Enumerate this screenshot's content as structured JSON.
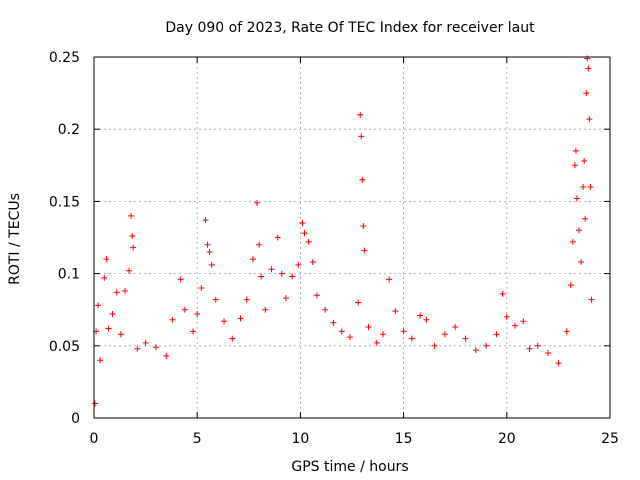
{
  "chart_data": {
    "type": "scatter",
    "title": "Day 090 of 2023, Rate Of TEC Index for receiver laut",
    "xlabel": "GPS time / hours",
    "ylabel": "ROTI / TECUs",
    "xlim": [
      0,
      25
    ],
    "ylim": [
      0,
      0.25
    ],
    "xticks": [
      0,
      5,
      10,
      15,
      20,
      25
    ],
    "xtick_labels": [
      "0",
      "5",
      "10",
      "15",
      "20",
      "25"
    ],
    "yticks": [
      0,
      0.05,
      0.1,
      0.15,
      0.2,
      0.25
    ],
    "ytick_labels": [
      "0",
      "0.05",
      "0.1",
      "0.15",
      "0.2",
      "0.25"
    ],
    "grid": true,
    "marker": "plus",
    "color": "#ff0000",
    "series": [
      {
        "points": [
          [
            0.05,
            0.01
          ],
          [
            0.1,
            0.06
          ],
          [
            0.2,
            0.078
          ],
          [
            0.3,
            0.04
          ],
          [
            0.5,
            0.097
          ],
          [
            0.6,
            0.11
          ],
          [
            0.7,
            0.062
          ],
          [
            0.9,
            0.072
          ],
          [
            1.1,
            0.087
          ],
          [
            1.3,
            0.058
          ],
          [
            1.5,
            0.088
          ],
          [
            1.7,
            0.102
          ],
          [
            1.8,
            0.14
          ],
          [
            1.85,
            0.126
          ],
          [
            1.9,
            0.118
          ],
          [
            2.1,
            0.048
          ],
          [
            2.5,
            0.052
          ],
          [
            3.0,
            0.049
          ],
          [
            3.5,
            0.043
          ],
          [
            3.8,
            0.068
          ],
          [
            4.2,
            0.096
          ],
          [
            4.4,
            0.075
          ],
          [
            4.8,
            0.06
          ],
          [
            5.0,
            0.072
          ],
          [
            5.2,
            0.09
          ],
          [
            5.4,
            0.137
          ],
          [
            5.5,
            0.12
          ],
          [
            5.6,
            0.115
          ],
          [
            5.7,
            0.106
          ],
          [
            5.9,
            0.082
          ],
          [
            6.3,
            0.067
          ],
          [
            6.7,
            0.055
          ],
          [
            7.1,
            0.069
          ],
          [
            7.4,
            0.082
          ],
          [
            7.7,
            0.11
          ],
          [
            7.9,
            0.149
          ],
          [
            8.0,
            0.12
          ],
          [
            8.1,
            0.098
          ],
          [
            8.3,
            0.075
          ],
          [
            8.6,
            0.103
          ],
          [
            8.9,
            0.125
          ],
          [
            9.1,
            0.1
          ],
          [
            9.3,
            0.083
          ],
          [
            9.6,
            0.098
          ],
          [
            9.9,
            0.106
          ],
          [
            10.1,
            0.135
          ],
          [
            10.2,
            0.128
          ],
          [
            10.4,
            0.122
          ],
          [
            10.6,
            0.108
          ],
          [
            10.8,
            0.085
          ],
          [
            11.2,
            0.075
          ],
          [
            11.6,
            0.066
          ],
          [
            12.0,
            0.06
          ],
          [
            12.4,
            0.056
          ],
          [
            12.8,
            0.08
          ],
          [
            12.9,
            0.21
          ],
          [
            12.95,
            0.195
          ],
          [
            13.0,
            0.165
          ],
          [
            13.05,
            0.133
          ],
          [
            13.1,
            0.116
          ],
          [
            13.3,
            0.063
          ],
          [
            13.7,
            0.052
          ],
          [
            14.0,
            0.058
          ],
          [
            14.3,
            0.096
          ],
          [
            14.6,
            0.074
          ],
          [
            15.0,
            0.06
          ],
          [
            15.4,
            0.055
          ],
          [
            15.8,
            0.071
          ],
          [
            16.1,
            0.068
          ],
          [
            16.5,
            0.05
          ],
          [
            17.0,
            0.058
          ],
          [
            17.5,
            0.063
          ],
          [
            18.0,
            0.055
          ],
          [
            18.5,
            0.047
          ],
          [
            19.0,
            0.05
          ],
          [
            19.5,
            0.058
          ],
          [
            19.8,
            0.086
          ],
          [
            20.0,
            0.07
          ],
          [
            20.4,
            0.064
          ],
          [
            20.8,
            0.067
          ],
          [
            21.1,
            0.048
          ],
          [
            21.5,
            0.05
          ],
          [
            22.0,
            0.045
          ],
          [
            22.5,
            0.038
          ],
          [
            22.9,
            0.06
          ],
          [
            23.1,
            0.092
          ],
          [
            23.2,
            0.122
          ],
          [
            23.3,
            0.175
          ],
          [
            23.35,
            0.185
          ],
          [
            23.4,
            0.152
          ],
          [
            23.5,
            0.13
          ],
          [
            23.6,
            0.108
          ],
          [
            23.7,
            0.16
          ],
          [
            23.75,
            0.178
          ],
          [
            23.8,
            0.138
          ],
          [
            23.85,
            0.225
          ],
          [
            23.9,
            0.249
          ],
          [
            23.95,
            0.242
          ],
          [
            24.0,
            0.207
          ],
          [
            24.05,
            0.16
          ],
          [
            24.1,
            0.082
          ]
        ]
      }
    ]
  }
}
